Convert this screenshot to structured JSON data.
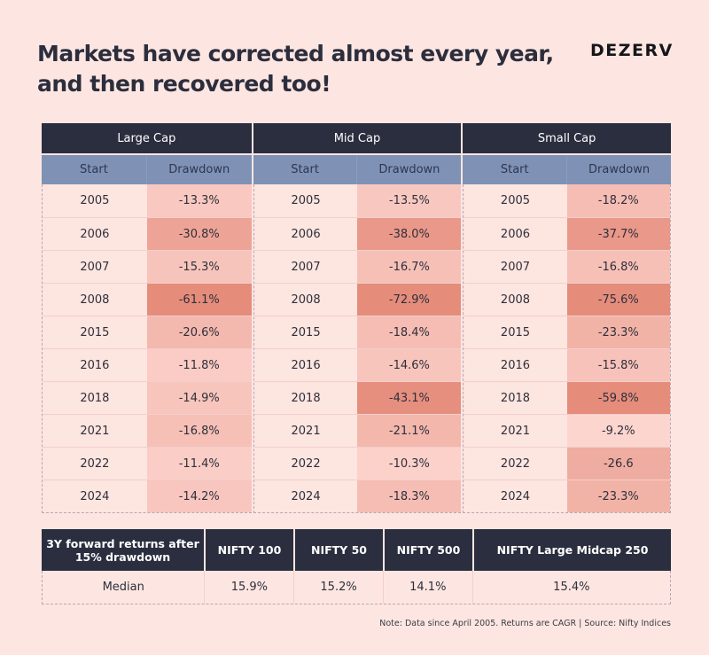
{
  "header": {
    "title_line1": "Markets have corrected almost every year,",
    "title_line2": "and then recovered too!",
    "logo": "DEZERV"
  },
  "colors": {
    "background": "#fde6e1",
    "header_dark": "#2b2e3f",
    "subheader_blue": "#7f92b6",
    "year_cell": "#fde5e0",
    "heat_low": "#fdd6d0",
    "heat_high": "#e58c7b"
  },
  "chart_data": {
    "type": "table",
    "title": "Markets have corrected almost every year, and then recovered too!",
    "drawdown_table": {
      "sub_columns": [
        "Start",
        "Drawdown"
      ],
      "groups": [
        {
          "name": "Large Cap",
          "rows": [
            {
              "start": "2005",
              "drawdown": "-13.3%",
              "value": -13.3
            },
            {
              "start": "2006",
              "drawdown": "-30.8%",
              "value": -30.8
            },
            {
              "start": "2007",
              "drawdown": "-15.3%",
              "value": -15.3
            },
            {
              "start": "2008",
              "drawdown": "-61.1%",
              "value": -61.1
            },
            {
              "start": "2015",
              "drawdown": "-20.6%",
              "value": -20.6
            },
            {
              "start": "2016",
              "drawdown": "-11.8%",
              "value": -11.8
            },
            {
              "start": "2018",
              "drawdown": "-14.9%",
              "value": -14.9
            },
            {
              "start": "2021",
              "drawdown": "-16.8%",
              "value": -16.8
            },
            {
              "start": "2022",
              "drawdown": "-11.4%",
              "value": -11.4
            },
            {
              "start": "2024",
              "drawdown": "-14.2%",
              "value": -14.2
            }
          ]
        },
        {
          "name": "Mid Cap",
          "rows": [
            {
              "start": "2005",
              "drawdown": "-13.5%",
              "value": -13.5
            },
            {
              "start": "2006",
              "drawdown": "-38.0%",
              "value": -38.0
            },
            {
              "start": "2007",
              "drawdown": "-16.7%",
              "value": -16.7
            },
            {
              "start": "2008",
              "drawdown": "-72.9%",
              "value": -72.9
            },
            {
              "start": "2015",
              "drawdown": "-18.4%",
              "value": -18.4
            },
            {
              "start": "2016",
              "drawdown": "-14.6%",
              "value": -14.6
            },
            {
              "start": "2018",
              "drawdown": "-43.1%",
              "value": -43.1
            },
            {
              "start": "2021",
              "drawdown": "-21.1%",
              "value": -21.1
            },
            {
              "start": "2022",
              "drawdown": "-10.3%",
              "value": -10.3
            },
            {
              "start": "2024",
              "drawdown": "-18.3%",
              "value": -18.3
            }
          ]
        },
        {
          "name": "Small Cap",
          "rows": [
            {
              "start": "2005",
              "drawdown": "-18.2%",
              "value": -18.2
            },
            {
              "start": "2006",
              "drawdown": "-37.7%",
              "value": -37.7
            },
            {
              "start": "2007",
              "drawdown": "-16.8%",
              "value": -16.8
            },
            {
              "start": "2008",
              "drawdown": "-75.6%",
              "value": -75.6
            },
            {
              "start": "2015",
              "drawdown": "-23.3%",
              "value": -23.3
            },
            {
              "start": "2016",
              "drawdown": "-15.8%",
              "value": -15.8
            },
            {
              "start": "2018",
              "drawdown": "-59.8%",
              "value": -59.8
            },
            {
              "start": "2021",
              "drawdown": "-9.2%",
              "value": -9.2
            },
            {
              "start": "2022",
              "drawdown": "-26.6",
              "value": -26.6
            },
            {
              "start": "2024",
              "drawdown": "-23.3%",
              "value": -23.3
            }
          ]
        }
      ]
    },
    "returns_table": {
      "headers": [
        "3Y forward returns after 15% drawdown",
        "NIFTY 100",
        "NIFTY 50",
        "NIFTY 500",
        "NIFTY Large Midcap 250"
      ],
      "rows": [
        {
          "label": "Median",
          "values": [
            "15.9%",
            "15.2%",
            "14.1%",
            "15.4%"
          ]
        }
      ]
    }
  },
  "footer": {
    "note": "Note: Data since April 2005. Returns are CAGR | Source: Nifty Indices"
  }
}
